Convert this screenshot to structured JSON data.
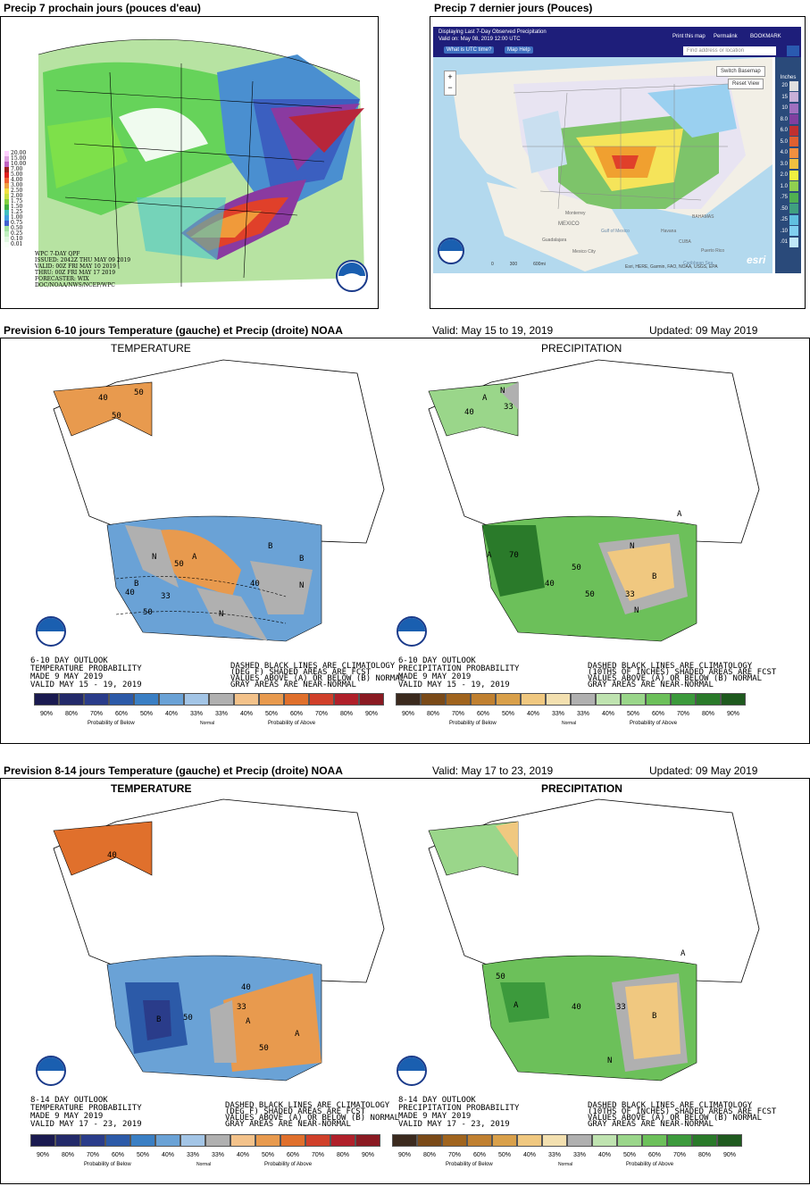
{
  "header1_left": "Precip 7 prochain jours (pouces d'eau)",
  "header1_right": "Precip 7 dernier jours (Pouces)",
  "wpc_legend": [
    "20.00",
    "15.00",
    "10.00",
    "7.00",
    "5.00",
    "4.00",
    "3.00",
    "2.50",
    "2.00",
    "1.75",
    "1.50",
    "1.25",
    "1.00",
    "0.75",
    "0.50",
    "0.25",
    "0.10",
    "0.01"
  ],
  "wpc_caption": [
    "WPC 7-DAY QPF",
    "ISSUED: 2042Z THU MAY 09 2019",
    "VALID: 00Z FRI MAY 10 2019",
    "THRU: 00Z FRI MAY 17 2019",
    "FORECASTER: WIX",
    "DOC/NOAA/NWS/NCEP/WPC"
  ],
  "esri": {
    "title": "Displaying Last 7-Day Observed Precipitation",
    "valid": "Valid on: May 08, 2019 12:00 UTC",
    "btn_utc": "What is UTC time?",
    "btn_help": "Map Help",
    "print": "Print this map",
    "permalink": "Permalink",
    "bookmark": "BOOKMARK",
    "search_placeholder": "Find address or location",
    "switch_basemap": "Switch Basemap",
    "reset": "Reset View",
    "units": "Inches",
    "scale_labels": [
      "20",
      "15",
      "10",
      "8.0",
      "6.0",
      "5.0",
      "4.0",
      "3.0",
      "2.0",
      "1.0",
      ".75",
      ".50",
      ".25",
      ".10",
      ".01"
    ],
    "places": [
      "MEXICO",
      "Guadalajara",
      "Mexico City",
      "Havana",
      "CUBA",
      "Puerto Rico",
      "Caribbean Sea",
      "Gulf of Mexico",
      "Monterrey",
      "BAHAMAS"
    ],
    "scale_bar": [
      "0",
      "300",
      "600mi"
    ],
    "attribution": "Esri, HERE, Garmin, FAO, NOAA, USGS, EPA",
    "esri_logo": "esri",
    "zoom_in": "+",
    "zoom_out": "−"
  },
  "section2": {
    "title": "Prevision 6-10 jours Temperature (gauche) et Precip (droite) NOAA",
    "valid": "Valid: May 15 to 19, 2019",
    "updated": "Updated: 09 May 2019"
  },
  "section3": {
    "title": "Prevision 8-14 jours Temperature (gauche) et Precip (droite) NOAA",
    "valid": "Valid: May 17 to 23, 2019",
    "updated": "Updated: 09 May 2019"
  },
  "panel_titles": {
    "temp": "TEMPERATURE",
    "precip": "PRECIPITATION"
  },
  "outlook610_temp": [
    "6-10 DAY OUTLOOK",
    "TEMPERATURE PROBABILITY",
    "MADE    9 MAY 2019",
    "VALID   MAY 15 - 19, 2019"
  ],
  "outlook610_precip": [
    "6-10 DAY OUTLOOK",
    "PRECIPITATION PROBABILITY",
    "MADE    9 MAY 2019",
    "VALID   MAY 15 - 19, 2019"
  ],
  "outlook814_temp": [
    "8-14 DAY OUTLOOK",
    "TEMPERATURE PROBABILITY",
    "MADE    9 MAY 2019",
    "VALID   MAY 17 - 23, 2019"
  ],
  "outlook814_precip": [
    "8-14 DAY OUTLOOK",
    "PRECIPITATION PROBABILITY",
    "MADE    9 MAY 2019",
    "VALID   MAY 17 - 23, 2019"
  ],
  "note_temp": [
    "DASHED BLACK LINES ARE CLIMATOLOGY",
    "(DEG F) SHADED AREAS ARE FCST",
    "VALUES ABOVE (A) OR BELOW (B) NORMAL",
    "GRAY AREAS ARE NEAR-NORMAL"
  ],
  "note_precip": [
    "DASHED BLACK LINES ARE CLIMATOLOGY",
    "(10THS OF INCHES) SHADED AREAS ARE FCST",
    "VALUES ABOVE (A) OR BELOW (B) NORMAL",
    "GRAY AREAS ARE NEAR-NORMAL"
  ],
  "legend_pct": [
    "90%",
    "80%",
    "70%",
    "60%",
    "50%",
    "40%",
    "33%",
    "33%",
    "40%",
    "50%",
    "60%",
    "70%",
    "80%",
    "90%"
  ],
  "legend_below": "Probability of Below",
  "legend_normal": "Normal",
  "legend_above": "Probability of Above",
  "temp_colors": [
    "#1a1a50",
    "#232a6a",
    "#2a3c8a",
    "#2c5aa8",
    "#3a7fc4",
    "#6aa2d6",
    "#a3c5e6",
    "#b0b0b0",
    "#f3c28a",
    "#e89a4e",
    "#e0702c",
    "#d0402a",
    "#b0202a",
    "#8a1a22"
  ],
  "precip_colors": [
    "#3b2a1e",
    "#7a4a18",
    "#a0641e",
    "#c08030",
    "#d9a04a",
    "#f0c880",
    "#f3e0b0",
    "#b0b0b0",
    "#bfe3b0",
    "#9ad68a",
    "#6cc05a",
    "#3c9a3c",
    "#2a7a2a",
    "#1f5a1f"
  ],
  "map_labels_610t": [
    "A",
    "N",
    "B",
    "N",
    "B",
    "50",
    "40",
    "33",
    "40",
    "50",
    "B",
    "N"
  ],
  "map_labels_610p": [
    "A",
    "70",
    "50",
    "N",
    "B",
    "40",
    "50",
    "33",
    "A",
    "N"
  ],
  "map_labels_814t": [
    "B",
    "50",
    "A",
    "40",
    "33",
    "A",
    "50",
    "40"
  ],
  "map_labels_814p": [
    "A",
    "50",
    "40",
    "A",
    "N",
    "B",
    "33"
  ],
  "alaska_labels": [
    "40",
    "50",
    "50"
  ],
  "alaska_labels_p": [
    "40",
    "33",
    "N",
    "A"
  ]
}
